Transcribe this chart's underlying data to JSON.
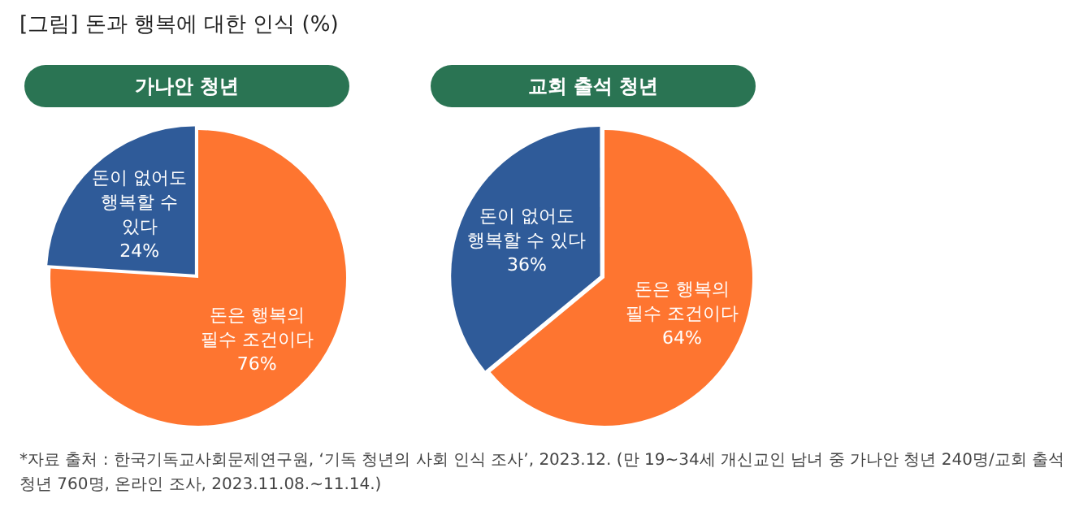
{
  "chart_data": [
    {
      "type": "pie",
      "title": "[그림] 돈과 행복에 대한 인식 (%)",
      "subtitle": "가나안 청년",
      "categories": [
        "돈은 행복의 필수 조건이다",
        "돈이 없어도 행복할 수 있다"
      ],
      "values": [
        76,
        24
      ],
      "colors": [
        "#fe7530",
        "#2f5b99"
      ],
      "value_labels": [
        "76%",
        "24%"
      ],
      "legend": false,
      "annotations": [
        "*자료 출처 : 한국기독교사회문제연구원, ‘기독 청년의 사회 인식 조사’, 2023.12. (만 19~34세 개신교인 남녀 중 가나안 청년 240명/교회 출석 청년 760명, 온라인 조사, 2023.11.08.~11.14.)"
      ]
    },
    {
      "type": "pie",
      "subtitle": "교회 출석 청년",
      "categories": [
        "돈은 행복의 필수 조건이다",
        "돈이 없어도 행복할 수 있다"
      ],
      "values": [
        64,
        36
      ],
      "colors": [
        "#fe7530",
        "#2f5b99"
      ],
      "value_labels": [
        "64%",
        "36%"
      ],
      "legend": false
    }
  ]
}
